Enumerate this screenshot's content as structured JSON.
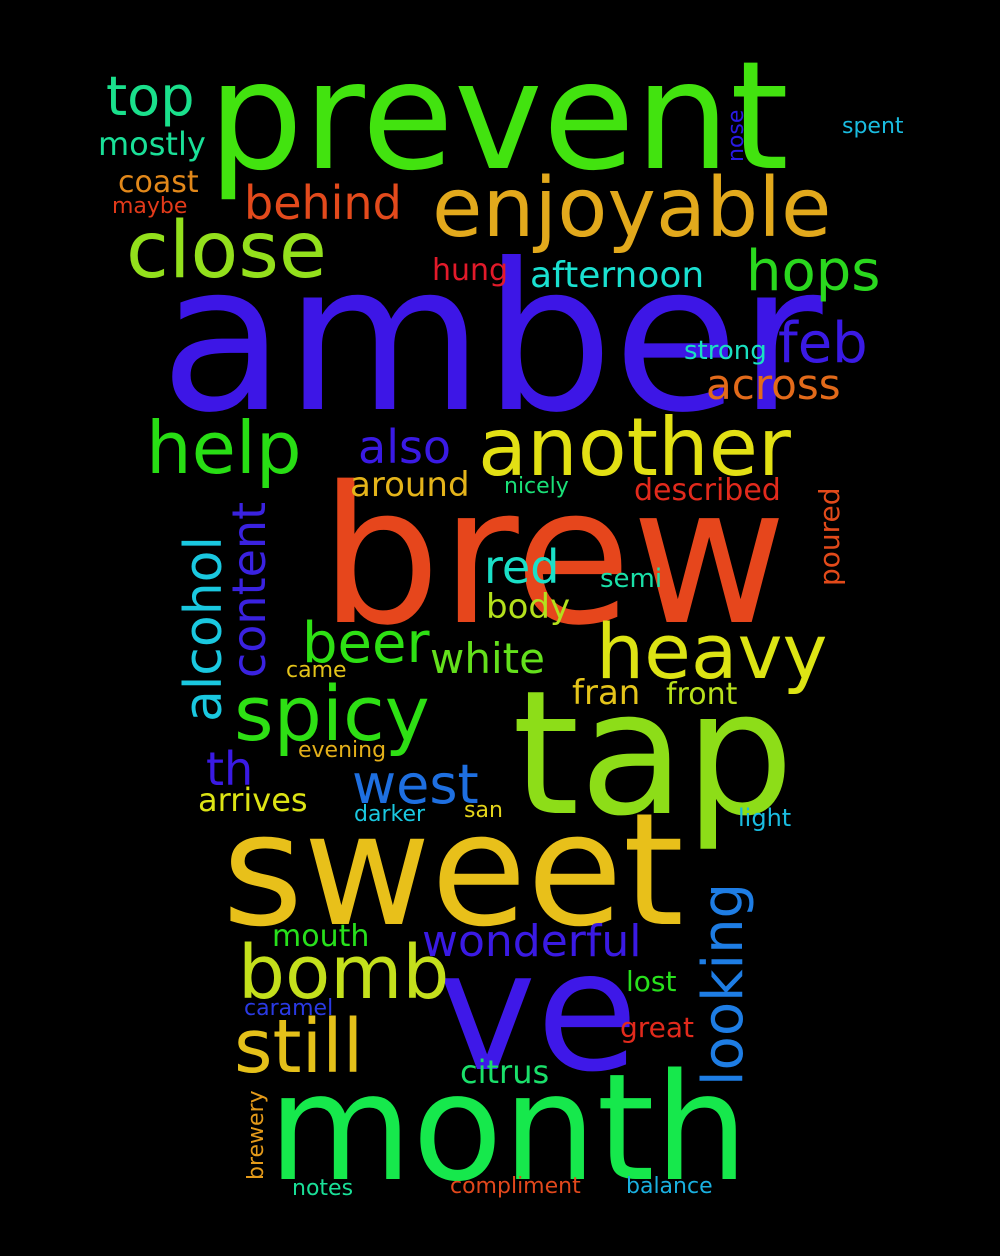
{
  "background": "#000000",
  "words": [
    {
      "text": "prevent",
      "color": "#42e30f"
    },
    {
      "text": "amber",
      "color": "#3d16e6"
    },
    {
      "text": "brew",
      "color": "#e6461c"
    },
    {
      "text": "tap",
      "color": "#8ddd18"
    },
    {
      "text": "sweet",
      "color": "#e8c01a"
    },
    {
      "text": "ve",
      "color": "#3e18e8"
    },
    {
      "text": "month",
      "color": "#16e84c"
    },
    {
      "text": "another",
      "color": "#e2e014"
    },
    {
      "text": "enjoyable",
      "color": "#e2a91c"
    },
    {
      "text": "close",
      "color": "#93e01c"
    },
    {
      "text": "heavy",
      "color": "#dde414"
    },
    {
      "text": "spicy",
      "color": "#2ee014"
    },
    {
      "text": "bomb",
      "color": "#c4e01c"
    },
    {
      "text": "still",
      "color": "#e4c01a"
    },
    {
      "text": "help",
      "color": "#28de14"
    },
    {
      "text": "hops",
      "color": "#2ad81e"
    },
    {
      "text": "top",
      "color": "#1ae08c"
    },
    {
      "text": "behind",
      "color": "#e34a1c"
    },
    {
      "text": "wonderful",
      "color": "#3a1ae4"
    },
    {
      "text": "west",
      "color": "#1e6fe0"
    },
    {
      "text": "beer",
      "color": "#2ee014"
    },
    {
      "text": "feb",
      "color": "#3a1ae4"
    },
    {
      "text": "across",
      "color": "#e26a1a"
    },
    {
      "text": "looking",
      "color": "#1e7de4"
    },
    {
      "text": "alcohol",
      "color": "#1ac8e0"
    },
    {
      "text": "content",
      "color": "#3a22e0"
    },
    {
      "text": "also",
      "color": "#3a1ae4"
    },
    {
      "text": "red",
      "color": "#1ae0c8"
    },
    {
      "text": "white",
      "color": "#64e01c"
    },
    {
      "text": "afternoon",
      "color": "#1ae0d0"
    },
    {
      "text": "mostly",
      "color": "#1ae098"
    },
    {
      "text": "coast",
      "color": "#e2881a"
    },
    {
      "text": "th",
      "color": "#3a1ae4"
    },
    {
      "text": "arrives",
      "color": "#dde414"
    },
    {
      "text": "around",
      "color": "#e4b41a"
    },
    {
      "text": "body",
      "color": "#b4e01c"
    },
    {
      "text": "fran",
      "color": "#e4c41a"
    },
    {
      "text": "front",
      "color": "#b8e01c"
    },
    {
      "text": "described",
      "color": "#e22a1c"
    },
    {
      "text": "hung",
      "color": "#e21a2a"
    },
    {
      "text": "strong",
      "color": "#1ae0c0"
    },
    {
      "text": "semi",
      "color": "#1ae0a8"
    },
    {
      "text": "nicely",
      "color": "#1ae078"
    },
    {
      "text": "poured",
      "color": "#e24a1a"
    },
    {
      "text": "mouth",
      "color": "#28e01c"
    },
    {
      "text": "citrus",
      "color": "#1ae06a"
    },
    {
      "text": "lost",
      "color": "#28e01c"
    },
    {
      "text": "great",
      "color": "#e22a1c"
    },
    {
      "text": "maybe",
      "color": "#e23a1a"
    },
    {
      "text": "nose",
      "color": "#2a1ae4"
    },
    {
      "text": "spent",
      "color": "#1abce0"
    },
    {
      "text": "came",
      "color": "#e4c41a"
    },
    {
      "text": "evening",
      "color": "#e4b01a"
    },
    {
      "text": "darker",
      "color": "#1ac8e0"
    },
    {
      "text": "san",
      "color": "#e4d41a"
    },
    {
      "text": "light",
      "color": "#1abce0"
    },
    {
      "text": "caramel",
      "color": "#2a3ae4"
    },
    {
      "text": "brewery",
      "color": "#e49a1a"
    },
    {
      "text": "notes",
      "color": "#1ae098"
    },
    {
      "text": "compliment",
      "color": "#e2481c"
    },
    {
      "text": "balance",
      "color": "#1ab0e0"
    }
  ]
}
